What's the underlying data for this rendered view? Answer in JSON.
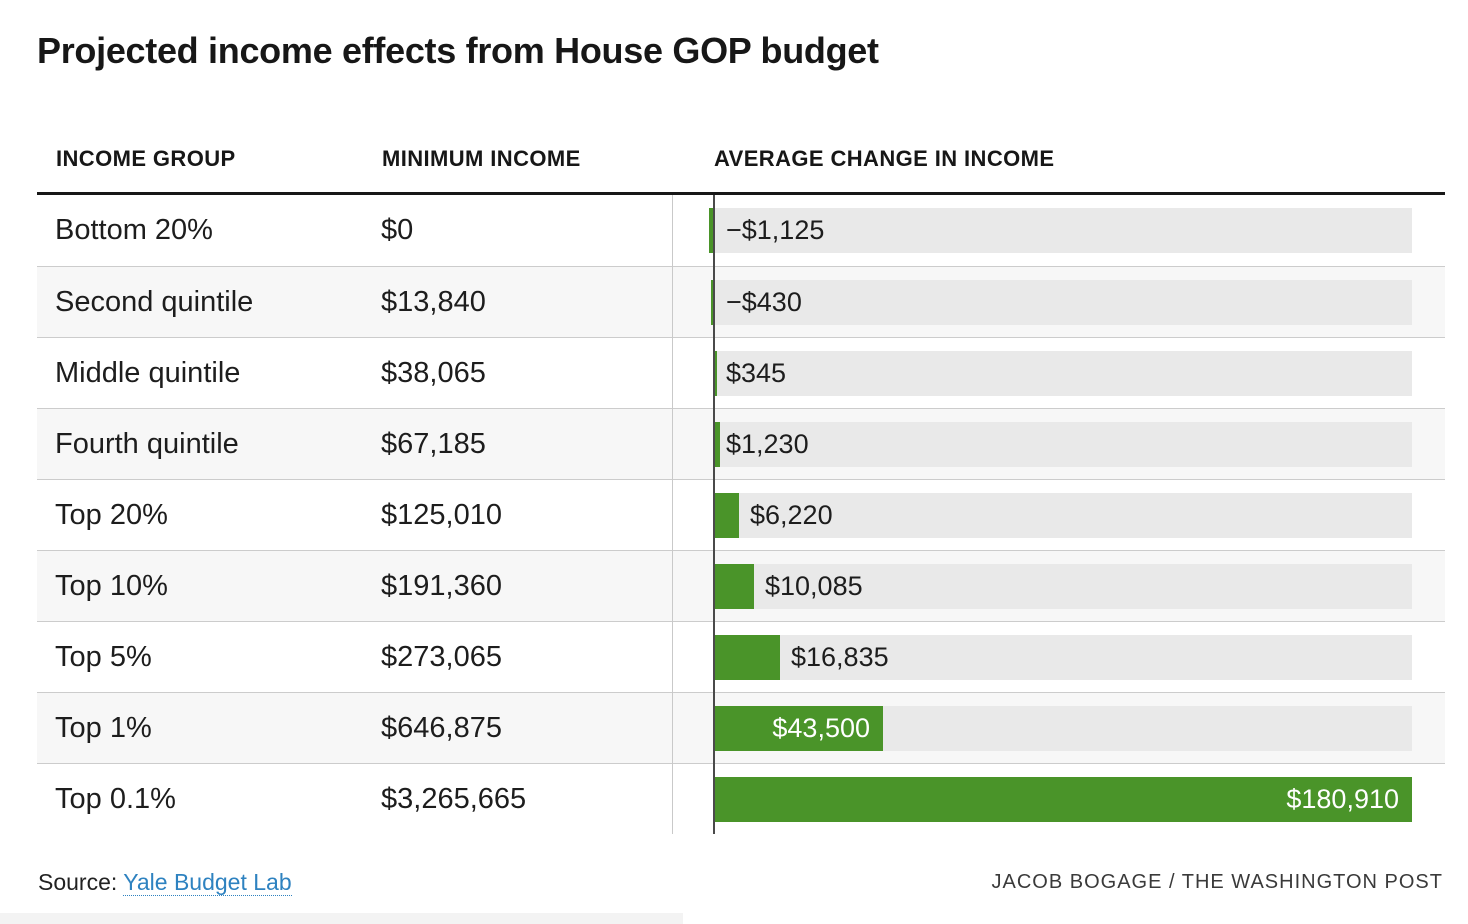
{
  "title": "Projected income effects from House GOP budget",
  "columns": {
    "income_group": "INCOME GROUP",
    "minimum_income": "MINIMUM INCOME",
    "average_change": "AVERAGE CHANGE IN INCOME"
  },
  "source": {
    "prefix": "Source: ",
    "link_label": "Yale Budget Lab"
  },
  "credit": "JACOB BOGAGE / THE WASHINGTON POST",
  "colors": {
    "bar_green": "#4a9429",
    "track_gray": "#e9e9e9",
    "row_alt": "#f7f7f7",
    "row_separator": "#cccccc",
    "zero_line": "#4a4a4a",
    "column_separator": "#c9c9c9",
    "header_rule": "#171717",
    "text": "#1d1d1d",
    "inside_bar_label": "#ffffff",
    "link_blue": "#2e82c0",
    "credit_text": "#3a3a3a"
  },
  "chart_data": {
    "type": "bar",
    "orientation": "horizontal",
    "title": "Projected income effects from House GOP budget",
    "categories": [
      "Bottom 20%",
      "Second quintile",
      "Middle quintile",
      "Fourth quintile",
      "Top 20%",
      "Top 10%",
      "Top 5%",
      "Top 1%",
      "Top 0.1%"
    ],
    "min_income_labels": [
      "$0",
      "$13,840",
      "$38,065",
      "$67,185",
      "$125,010",
      "$191,360",
      "$273,065",
      "$646,875",
      "$3,265,665"
    ],
    "values": [
      -1125,
      -430,
      345,
      1230,
      6220,
      10085,
      16835,
      43500,
      180910
    ],
    "value_labels": [
      "−$1,125",
      "−$430",
      "$345",
      "$1,230",
      "$6,220",
      "$10,085",
      "$16,835",
      "$43,500",
      "$180,910"
    ],
    "series_name": "Average change in income",
    "xlabel": "",
    "ylabel": "",
    "xmax": 180910,
    "grid": false,
    "legend": false,
    "negative_direction": "left",
    "bar_color": "#4a9429",
    "alternating_row_shading": true
  }
}
